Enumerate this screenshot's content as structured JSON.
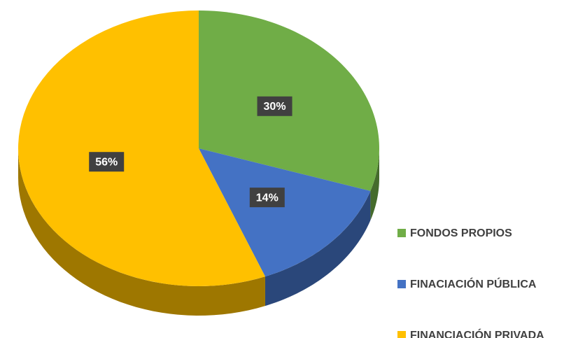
{
  "chart_data": {
    "type": "pie",
    "categories": [
      "FONDOS PROPIOS",
      "FINACIACIÓN PÚBLICA",
      "FINANCIACIÓN PRIVADA"
    ],
    "values": [
      30,
      14,
      56
    ],
    "value_labels": [
      "30%",
      "14%",
      "56%"
    ],
    "colors": [
      "#70ad47",
      "#4472c4",
      "#ffc000"
    ],
    "legend": "right",
    "three_d": true
  }
}
